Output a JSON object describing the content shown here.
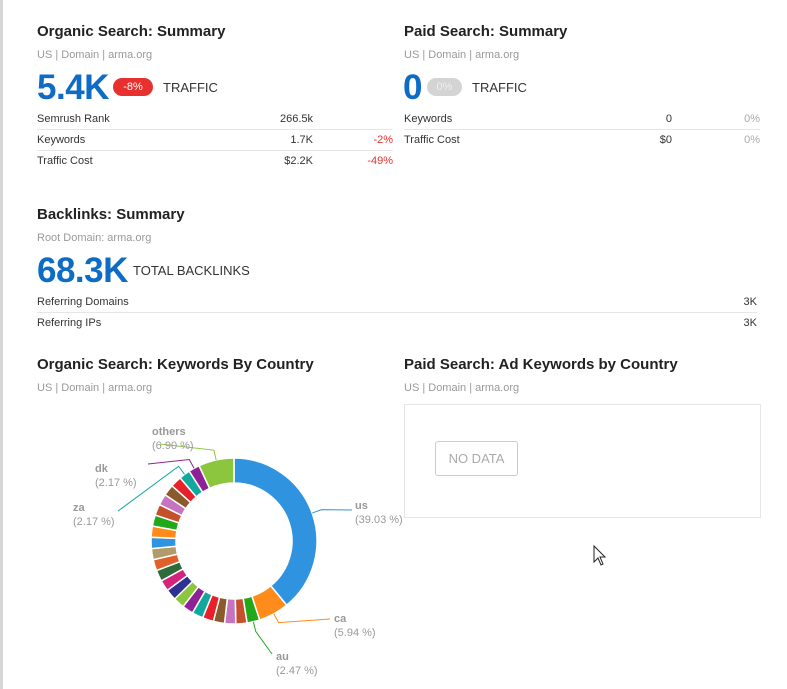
{
  "organic_summary": {
    "title": "Organic Search: Summary",
    "subtitle": "US | Domain | arma.org",
    "traffic_value": "5.4K",
    "traffic_change": "-8%",
    "traffic_label": "TRAFFIC",
    "rows": [
      {
        "label": "Semrush Rank",
        "value": "266.5k",
        "change": ""
      },
      {
        "label": "Keywords",
        "value": "1.7K",
        "change": "-2%"
      },
      {
        "label": "Traffic Cost",
        "value": "$2.2K",
        "change": "-49%"
      }
    ]
  },
  "paid_summary": {
    "title": "Paid Search: Summary",
    "subtitle": "US | Domain | arma.org",
    "traffic_value": "0",
    "traffic_change": "0%",
    "traffic_label": "TRAFFIC",
    "rows": [
      {
        "label": "Keywords",
        "value": "0",
        "change": "0%"
      },
      {
        "label": "Traffic Cost",
        "value": "$0",
        "change": "0%"
      }
    ]
  },
  "backlinks": {
    "title": "Backlinks: Summary",
    "subtitle": "Root Domain: arma.org",
    "total_value": "68.3K",
    "total_label": "TOTAL BACKLINKS",
    "rows": [
      {
        "label": "Referring Domains",
        "value": "3K"
      },
      {
        "label": "Referring IPs",
        "value": "3K"
      }
    ]
  },
  "organic_by_country": {
    "title": "Organic Search: Keywords By Country",
    "subtitle": "US | Domain | arma.org"
  },
  "paid_by_country": {
    "title": "Paid Search: Ad Keywords by Country",
    "subtitle": "US | Domain | arma.org",
    "no_data_label": "NO DATA"
  },
  "chart_data": {
    "type": "pie",
    "title": "Organic Search: Keywords By Country",
    "donut": true,
    "slices": [
      {
        "name": "us",
        "value": 39.03,
        "label": "(39.03 %)",
        "color": "#2f93e0"
      },
      {
        "name": "ca",
        "value": 5.94,
        "label": "(5.94 %)",
        "color": "#ff8c1a"
      },
      {
        "name": "au",
        "value": 2.47,
        "label": "(2.47 %)",
        "color": "#23a81c"
      },
      {
        "name": "",
        "value": 2.17,
        "color": "#c4512b"
      },
      {
        "name": "",
        "value": 2.17,
        "color": "#c774c0"
      },
      {
        "name": "",
        "value": 2.17,
        "color": "#8b5a2b"
      },
      {
        "name": "",
        "value": 2.17,
        "color": "#e8202a"
      },
      {
        "name": "",
        "value": 2.17,
        "color": "#13a89e"
      },
      {
        "name": "",
        "value": 2.17,
        "color": "#8e2196"
      },
      {
        "name": "",
        "value": 2.17,
        "color": "#8cc63f"
      },
      {
        "name": "",
        "value": 2.17,
        "color": "#2e3192"
      },
      {
        "name": "",
        "value": 2.17,
        "color": "#d4237a"
      },
      {
        "name": "",
        "value": 2.17,
        "color": "#2e6b3a"
      },
      {
        "name": "",
        "value": 2.17,
        "color": "#e0602b"
      },
      {
        "name": "",
        "value": 2.17,
        "color": "#b39a6b"
      },
      {
        "name": "",
        "value": 2.17,
        "color": "#2f93e0"
      },
      {
        "name": "",
        "value": 2.17,
        "color": "#ff8c1a"
      },
      {
        "name": "",
        "value": 2.17,
        "color": "#23a81c"
      },
      {
        "name": "",
        "value": 2.17,
        "color": "#c4512b"
      },
      {
        "name": "",
        "value": 2.17,
        "color": "#c774c0"
      },
      {
        "name": "",
        "value": 2.17,
        "color": "#8b5a2b"
      },
      {
        "name": "",
        "value": 2.17,
        "color": "#e8202a"
      },
      {
        "name": "za",
        "value": 2.17,
        "label": "(2.17 %)",
        "color": "#13a89e"
      },
      {
        "name": "dk",
        "value": 2.17,
        "label": "(2.17 %)",
        "color": "#8e2196"
      },
      {
        "name": "others",
        "value": 6.9,
        "label": "(6.90 %)",
        "color": "#8cc63f"
      }
    ]
  }
}
